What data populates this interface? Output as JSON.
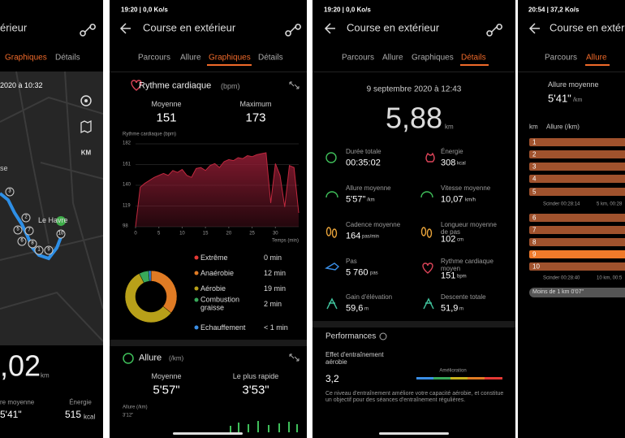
{
  "screen1": {
    "title": "érieur",
    "tabs": [
      "Graphiques",
      "Détails"
    ],
    "date": "2020 à 10:32",
    "map_button": "KM",
    "map_labels": [
      "se",
      "Le Havre"
    ],
    "markers": [
      "3",
      "2",
      "5",
      "6",
      "7",
      "8",
      "1",
      "9",
      "10"
    ],
    "distance": ",02",
    "distance_unit": "km",
    "pace_label": "re moyenne",
    "pace": "5'41\"",
    "energy_label": "Énergie",
    "energy": "515",
    "energy_unit": "kcal"
  },
  "screen2": {
    "status": "19:20 | 0,0 Ko/s",
    "title": "Course en extérieur",
    "tabs": [
      "Parcours",
      "Allure",
      "Graphiques",
      "Détails"
    ],
    "heart_title": "Rythme cardiaque",
    "heart_unit": "(bpm)",
    "avg_label": "Moyenne",
    "avg": "151",
    "max_label": "Maximum",
    "max": "173",
    "heart_chart": {
      "type": "area",
      "label": "Rythme cardiaque (bpm)",
      "x_label": "Temps (min)",
      "color": "#8e1c33",
      "x": [
        0,
        1,
        2,
        3,
        4,
        5,
        6,
        7,
        8,
        9,
        10,
        11,
        12,
        13,
        14,
        15,
        16,
        17,
        18,
        19,
        20,
        21,
        22,
        23,
        24,
        25,
        26,
        27,
        28,
        29,
        30,
        31,
        32,
        33,
        34,
        35
      ],
      "values": [
        98,
        138,
        142,
        145,
        148,
        150,
        152,
        150,
        155,
        153,
        156,
        150,
        148,
        157,
        158,
        155,
        160,
        162,
        158,
        164,
        166,
        165,
        168,
        167,
        170,
        169,
        171,
        172,
        173,
        122,
        162,
        150,
        118,
        160,
        158,
        112
      ],
      "xlim": [
        0,
        35
      ],
      "xticks": [
        0,
        5,
        10,
        15,
        20,
        25,
        30
      ],
      "ylim": [
        98,
        182
      ],
      "yticks": [
        98,
        119,
        140,
        161,
        182
      ]
    },
    "zones": [
      {
        "name": "Extrême",
        "color": "#e53935",
        "time": {
          "value": 0,
          "label": "0 min"
        }
      },
      {
        "name": "Anaérobie",
        "color": "#e07b24",
        "time": {
          "value": 12,
          "label": "12 min"
        }
      },
      {
        "name": "Aérobie",
        "color": "#b8a019",
        "time": {
          "value": 19,
          "label": "19 min"
        }
      },
      {
        "name": "Combustion graisse",
        "color": "#38a85a",
        "time": {
          "value": 2,
          "label": "2 min"
        }
      },
      {
        "name": "Echauffement",
        "color": "#3a8ee6",
        "time": {
          "value": 0.5,
          "label": "< 1 min"
        }
      }
    ],
    "pace_title": "Allure",
    "pace_unit": "(/km)",
    "pace_avg_label": "Moyenne",
    "pace_avg": "5'57\"",
    "pace_fast_label": "Le plus rapide",
    "pace_fast": "3'53\"",
    "pace_chart_label": "Allure (/km)",
    "pace_chart_top": "3'12\""
  },
  "screen3": {
    "status": "19:20 | 0,0 Ko/s",
    "title": "Course en extérieur",
    "tabs": [
      "Parcours",
      "Allure",
      "Graphiques",
      "Détails"
    ],
    "date": "9 septembre 2020 à 12:43",
    "distance": "5,88",
    "distance_unit": "km",
    "metrics": [
      {
        "label": "Durée totale",
        "value": "00:35:02",
        "unit": ""
      },
      {
        "label": "Énergie",
        "value": "308",
        "unit": "kcal"
      },
      {
        "label": "Allure moyenne",
        "value": "5'57\"",
        "unit": "/km"
      },
      {
        "label": "Vitesse moyenne",
        "value": "10,07",
        "unit": "km/h"
      },
      {
        "label": "Cadence moyenne",
        "value": "164",
        "unit": "pas/min"
      },
      {
        "label": "Longueur moyenne de pas",
        "value": "102",
        "unit": "cm"
      },
      {
        "label": "Pas",
        "value": "5 760",
        "unit": "pas"
      },
      {
        "label": "Rythme cardiaque moyen",
        "value": "151",
        "unit": "bpm"
      },
      {
        "label": "Gain d'élévation",
        "value": "59,6",
        "unit": "m"
      },
      {
        "label": "Descente totale",
        "value": "51,9",
        "unit": "m"
      }
    ],
    "performance_title": "Performances",
    "effect_label": "Effet d'entraînement aérobie",
    "effect_value": "3,2",
    "effect_level": "Amélioration",
    "effect_text": "Ce niveau d'entraînement améliore votre capacité aérobie, et constitue un objectif pour des séances d'entraînement régulières."
  },
  "screen4": {
    "status": "20:54 | 37,2 Ko/s",
    "title": "Course en extérieu",
    "tabs": [
      "Parcours",
      "Allure"
    ],
    "avg_label": "Allure moyenne",
    "avg": "5'41\"",
    "avg_unit": "/km",
    "col_km": "km",
    "col_pace": "Allure (/km)",
    "rows": [
      "1",
      "2",
      "3",
      "4",
      "5",
      "6",
      "7",
      "8",
      "9",
      "10"
    ],
    "splits": [
      {
        "label": "Scinder 00:28:14",
        "total": "5 km, 00:28"
      },
      {
        "label": "Scinder 00:28:40",
        "total": "10 km, 00:5"
      }
    ],
    "remainder": "Moins de 1 km 0'07\""
  }
}
